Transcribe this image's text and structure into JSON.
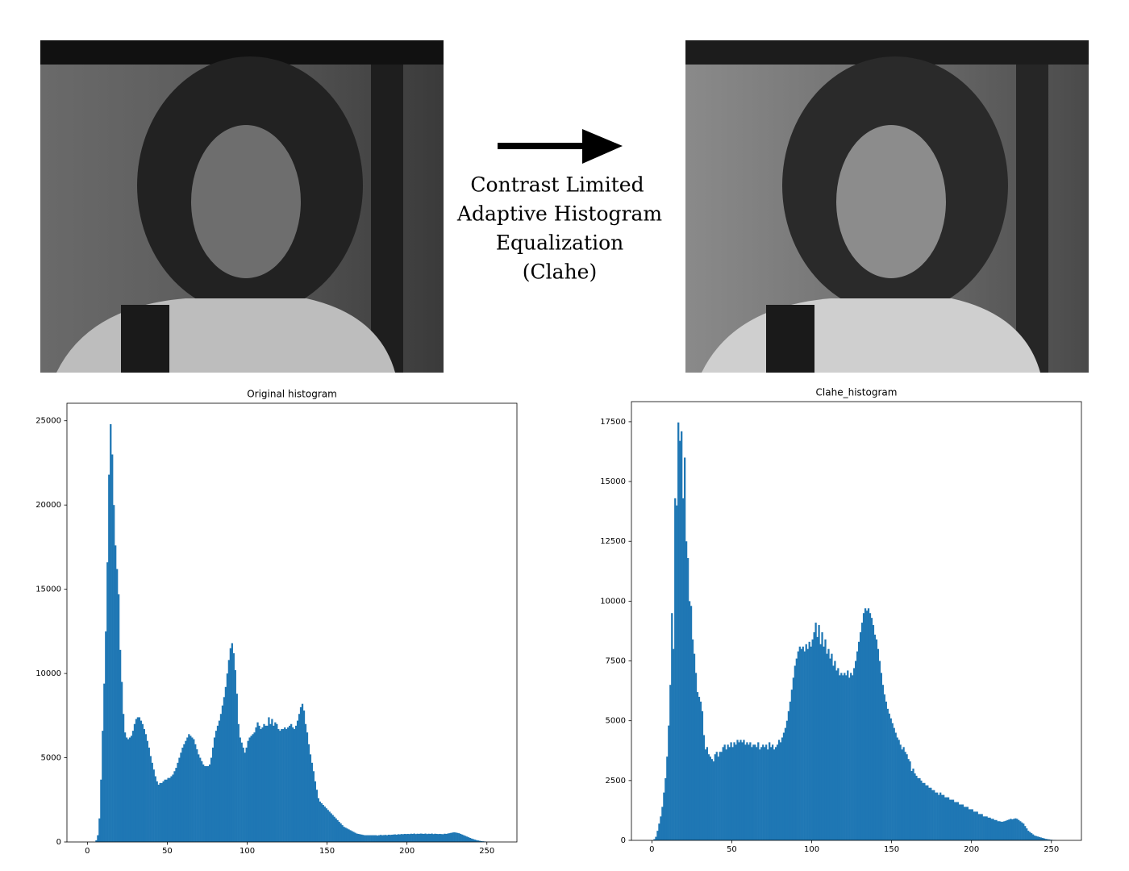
{
  "caption": [
    "Contrast Limited",
    "Adaptive Histogram",
    "Equalization",
    "(Clahe)"
  ],
  "chart_data": [
    {
      "type": "histogram",
      "title": "Original histogram",
      "color": "#1f77b4",
      "xlim": [
        -12.8,
        268.8
      ],
      "ylim": [
        0,
        26040
      ],
      "xticks": [
        0,
        50,
        100,
        150,
        200,
        250
      ],
      "yticks": [
        0,
        5000,
        10000,
        15000,
        20000,
        25000
      ],
      "bins": [
        0,
        1,
        2,
        3,
        4,
        5,
        6,
        7,
        8,
        9,
        10,
        11,
        12,
        13,
        14,
        15,
        16,
        17,
        18,
        19,
        20,
        21,
        22,
        23,
        24,
        25,
        26,
        27,
        28,
        29,
        30,
        31,
        32,
        33,
        34,
        35,
        36,
        37,
        38,
        39,
        40,
        41,
        42,
        43,
        44,
        45,
        46,
        47,
        48,
        49,
        50,
        51,
        52,
        53,
        54,
        55,
        56,
        57,
        58,
        59,
        60,
        61,
        62,
        63,
        64,
        65,
        66,
        67,
        68,
        69,
        70,
        71,
        72,
        73,
        74,
        75,
        76,
        77,
        78,
        79,
        80,
        81,
        82,
        83,
        84,
        85,
        86,
        87,
        88,
        89,
        90,
        91,
        92,
        93,
        94,
        95,
        96,
        97,
        98,
        99,
        100,
        101,
        102,
        103,
        104,
        105,
        106,
        107,
        108,
        109,
        110,
        111,
        112,
        113,
        114,
        115,
        116,
        117,
        118,
        119,
        120,
        121,
        122,
        123,
        124,
        125,
        126,
        127,
        128,
        129,
        130,
        131,
        132,
        133,
        134,
        135,
        136,
        137,
        138,
        139,
        140,
        141,
        142,
        143,
        144,
        145,
        146,
        147,
        148,
        149,
        150,
        151,
        152,
        153,
        154,
        155,
        156,
        157,
        158,
        159,
        160,
        161,
        162,
        163,
        164,
        165,
        166,
        167,
        168,
        169,
        170,
        171,
        172,
        173,
        174,
        175,
        176,
        177,
        178,
        179,
        180,
        181,
        182,
        183,
        184,
        185,
        186,
        187,
        188,
        189,
        190,
        191,
        192,
        193,
        194,
        195,
        196,
        197,
        198,
        199,
        200,
        201,
        202,
        203,
        204,
        205,
        206,
        207,
        208,
        209,
        210,
        211,
        212,
        213,
        214,
        215,
        216,
        217,
        218,
        219,
        220,
        221,
        222,
        223,
        224,
        225,
        226,
        227,
        228,
        229,
        230,
        231,
        232,
        233,
        234,
        235,
        236,
        237,
        238,
        239,
        240,
        241,
        242,
        243,
        244,
        245,
        246,
        247,
        248,
        249,
        250,
        251,
        252,
        253,
        254,
        255,
        256
      ],
      "counts": [
        0,
        0,
        0,
        0,
        0,
        100,
        400,
        1400,
        3700,
        6600,
        9400,
        12500,
        16600,
        21800,
        24800,
        23000,
        20000,
        17600,
        16200,
        14700,
        11400,
        9500,
        7600,
        6500,
        6200,
        6100,
        6200,
        6300,
        6600,
        7000,
        7300,
        7400,
        7400,
        7200,
        7000,
        6700,
        6400,
        6000,
        5600,
        5100,
        4700,
        4300,
        3900,
        3600,
        3400,
        3500,
        3500,
        3600,
        3700,
        3700,
        3800,
        3800,
        3900,
        4000,
        4200,
        4400,
        4700,
        5000,
        5300,
        5600,
        5800,
        6000,
        6200,
        6400,
        6300,
        6200,
        6100,
        5800,
        5500,
        5200,
        5000,
        4800,
        4600,
        4500,
        4500,
        4500,
        4600,
        5000,
        5600,
        6200,
        6600,
        6900,
        7200,
        7600,
        8100,
        8600,
        9200,
        10000,
        10800,
        11500,
        11800,
        11200,
        10200,
        8800,
        7000,
        6200,
        5900,
        5600,
        5300,
        5600,
        6000,
        6200,
        6300,
        6400,
        6500,
        6800,
        7100,
        6900,
        6700,
        6800,
        7000,
        6900,
        6900,
        7400,
        7000,
        7300,
        6900,
        7100,
        7000,
        6700,
        6600,
        6700,
        6700,
        6800,
        6700,
        6800,
        6900,
        7000,
        6800,
        6700,
        6900,
        7200,
        7600,
        8000,
        8200,
        7800,
        7000,
        6500,
        5800,
        5200,
        4700,
        4200,
        3600,
        3100,
        2600,
        2400,
        2300,
        2200,
        2100,
        2000,
        1900,
        1800,
        1700,
        1600,
        1500,
        1400,
        1300,
        1200,
        1100,
        1000,
        900,
        850,
        800,
        750,
        700,
        650,
        600,
        550,
        500,
        480,
        460,
        440,
        420,
        400,
        400,
        400,
        400,
        400,
        400,
        400,
        400,
        380,
        400,
        420,
        400,
        410,
        420,
        400,
        430,
        420,
        430,
        440,
        450,
        430,
        460,
        450,
        470,
        460,
        480,
        470,
        480,
        470,
        490,
        480,
        500,
        470,
        490,
        480,
        500,
        490,
        480,
        500,
        470,
        490,
        480,
        500,
        470,
        490,
        480,
        470,
        480,
        470,
        460,
        490,
        480,
        500,
        520,
        540,
        560,
        570,
        560,
        540,
        520,
        480,
        440,
        400,
        360,
        320,
        280,
        240,
        200,
        170,
        140,
        110,
        90,
        70,
        50,
        40,
        30,
        20,
        10,
        10,
        0,
        0,
        0,
        0
      ]
    },
    {
      "type": "histogram",
      "title": "Clahe_histogram",
      "color": "#1f77b4",
      "xlim": [
        -12.8,
        268.8
      ],
      "ylim": [
        0,
        18340
      ],
      "xticks": [
        0,
        50,
        100,
        150,
        200,
        250
      ],
      "yticks": [
        0,
        2500,
        5000,
        7500,
        10000,
        12500,
        15000,
        17500
      ],
      "bins": [
        0,
        1,
        2,
        3,
        4,
        5,
        6,
        7,
        8,
        9,
        10,
        11,
        12,
        13,
        14,
        15,
        16,
        17,
        18,
        19,
        20,
        21,
        22,
        23,
        24,
        25,
        26,
        27,
        28,
        29,
        30,
        31,
        32,
        33,
        34,
        35,
        36,
        37,
        38,
        39,
        40,
        41,
        42,
        43,
        44,
        45,
        46,
        47,
        48,
        49,
        50,
        51,
        52,
        53,
        54,
        55,
        56,
        57,
        58,
        59,
        60,
        61,
        62,
        63,
        64,
        65,
        66,
        67,
        68,
        69,
        70,
        71,
        72,
        73,
        74,
        75,
        76,
        77,
        78,
        79,
        80,
        81,
        82,
        83,
        84,
        85,
        86,
        87,
        88,
        89,
        90,
        91,
        92,
        93,
        94,
        95,
        96,
        97,
        98,
        99,
        100,
        101,
        102,
        103,
        104,
        105,
        106,
        107,
        108,
        109,
        110,
        111,
        112,
        113,
        114,
        115,
        116,
        117,
        118,
        119,
        120,
        121,
        122,
        123,
        124,
        125,
        126,
        127,
        128,
        129,
        130,
        131,
        132,
        133,
        134,
        135,
        136,
        137,
        138,
        139,
        140,
        141,
        142,
        143,
        144,
        145,
        146,
        147,
        148,
        149,
        150,
        151,
        152,
        153,
        154,
        155,
        156,
        157,
        158,
        159,
        160,
        161,
        162,
        163,
        164,
        165,
        166,
        167,
        168,
        169,
        170,
        171,
        172,
        173,
        174,
        175,
        176,
        177,
        178,
        179,
        180,
        181,
        182,
        183,
        184,
        185,
        186,
        187,
        188,
        189,
        190,
        191,
        192,
        193,
        194,
        195,
        196,
        197,
        198,
        199,
        200,
        201,
        202,
        203,
        204,
        205,
        206,
        207,
        208,
        209,
        210,
        211,
        212,
        213,
        214,
        215,
        216,
        217,
        218,
        219,
        220,
        221,
        222,
        223,
        224,
        225,
        226,
        227,
        228,
        229,
        230,
        231,
        232,
        233,
        234,
        235,
        236,
        237,
        238,
        239,
        240,
        241,
        242,
        243,
        244,
        245,
        246,
        247,
        248,
        249,
        250,
        251,
        252,
        253,
        254,
        255,
        256
      ],
      "counts": [
        0,
        50,
        150,
        400,
        700,
        1000,
        1400,
        2000,
        2600,
        3500,
        4800,
        6500,
        9500,
        8000,
        14300,
        14000,
        17470,
        16700,
        17100,
        14300,
        16000,
        12500,
        11800,
        10000,
        9800,
        8400,
        7800,
        7000,
        6200,
        6000,
        5800,
        5400,
        4400,
        3800,
        3900,
        3600,
        3500,
        3400,
        3300,
        3600,
        3700,
        3500,
        3700,
        3700,
        3900,
        4000,
        3800,
        4000,
        3900,
        4100,
        3900,
        4100,
        4000,
        4200,
        4100,
        4200,
        4100,
        4200,
        4000,
        4100,
        4000,
        4100,
        3900,
        4000,
        4000,
        3900,
        4100,
        3800,
        3900,
        4000,
        3900,
        4000,
        3800,
        4100,
        3900,
        4000,
        3800,
        3900,
        4000,
        4200,
        4100,
        4300,
        4500,
        4700,
        5000,
        5400,
        5800,
        6300,
        6800,
        7300,
        7600,
        7900,
        8100,
        8000,
        8100,
        7900,
        8200,
        8000,
        8300,
        8100,
        8400,
        8700,
        9100,
        8500,
        9000,
        8200,
        8700,
        8100,
        8400,
        7800,
        8000,
        7600,
        7800,
        7300,
        7500,
        7100,
        7200,
        6900,
        7000,
        6900,
        7000,
        6900,
        7100,
        6800,
        7000,
        6900,
        7200,
        7500,
        7900,
        8300,
        8700,
        9100,
        9500,
        9700,
        9600,
        9700,
        9500,
        9300,
        9000,
        8600,
        8400,
        8000,
        7500,
        7000,
        6500,
        6100,
        5800,
        5500,
        5300,
        5100,
        4900,
        4700,
        4500,
        4300,
        4200,
        4000,
        3800,
        3900,
        3700,
        3600,
        3400,
        3300,
        2900,
        3000,
        2800,
        2700,
        2600,
        2600,
        2500,
        2400,
        2400,
        2300,
        2300,
        2200,
        2200,
        2100,
        2100,
        2000,
        2000,
        1900,
        2000,
        1900,
        1900,
        1800,
        1800,
        1800,
        1700,
        1700,
        1700,
        1600,
        1600,
        1600,
        1500,
        1500,
        1500,
        1400,
        1400,
        1400,
        1300,
        1300,
        1300,
        1200,
        1200,
        1200,
        1100,
        1100,
        1100,
        1000,
        1000,
        1000,
        950,
        950,
        900,
        900,
        850,
        850,
        800,
        800,
        780,
        780,
        800,
        820,
        850,
        870,
        900,
        880,
        900,
        920,
        900,
        850,
        800,
        750,
        700,
        600,
        500,
        400,
        350,
        300,
        250,
        200,
        180,
        160,
        140,
        120,
        100,
        80,
        60,
        50,
        40,
        30,
        20,
        10,
        10,
        0,
        0,
        0
      ]
    }
  ]
}
